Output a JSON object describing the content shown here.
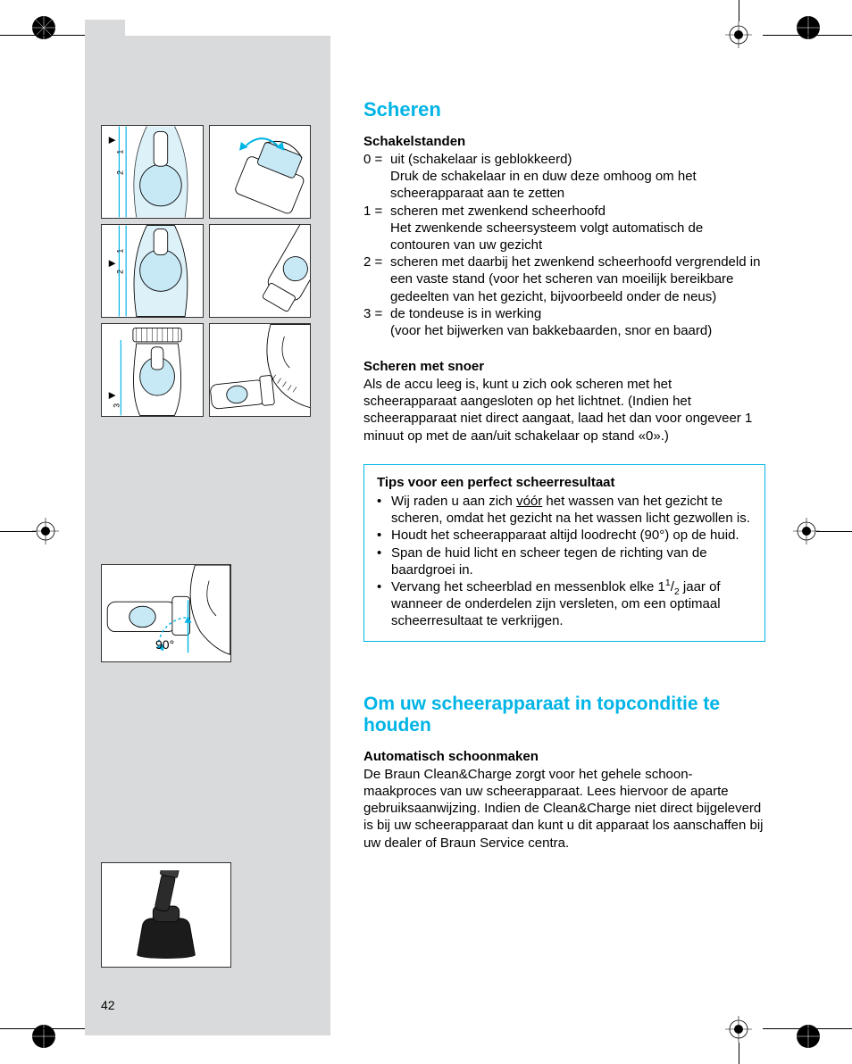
{
  "colors": {
    "accent": "#00b4e6",
    "grey_col": "#d9dadb",
    "ink": "#000000",
    "paper": "#ffffff",
    "lightblue_fill": "#c7e8f5"
  },
  "page_number": "42",
  "angle_label": "90°",
  "section1": {
    "title": "Scheren",
    "switch": {
      "heading": "Schakelstanden",
      "items": [
        {
          "k": "0 =",
          "v": "uit (schakelaar is geblokkeerd)\nDruk de schakelaar in en duw deze omhoog om het scheerapparaat aan te zetten"
        },
        {
          "k": "1 =",
          "v": "scheren met zwenkend scheerhoofd\nHet zwenkende scheersysteem volgt automatisch de contouren van uw gezicht"
        },
        {
          "k": "2 =",
          "v": "scheren met daarbij het zwenkend scheerhoofd vergrendeld in een vaste stand (voor het scheren van moeilijk bereikbare gedeelten van het gezicht, bijvoorbeeld onder de neus)"
        },
        {
          "k": "3 =",
          "v": "de tondeuse is in werking\n(voor het bijwerken van bakkebaarden, snor en baard)"
        }
      ]
    },
    "cord": {
      "heading": "Scheren met snoer",
      "body": "Als de accu leeg is, kunt u zich ook scheren met het scheerapparaat aangesloten op het lichtnet. (Indien het scheerapparaat niet direct aangaat, laad het dan voor ongeveer 1 minuut op met de aan/uit schakelaar op stand «0».)"
    },
    "tips": {
      "title": "Tips voor een perfect scheerresultaat",
      "items": [
        {
          "pre": "Wij raden u aan zich ",
          "u": "vóór",
          "post": " het wassen van het gezicht te scheren, omdat het gezicht na het wassen licht gezwollen is."
        },
        {
          "text": "Houdt het scheerapparaat altijd loodrecht (90°) op de huid."
        },
        {
          "text": "Span de huid licht en scheer tegen de richting van de baardgroei in."
        },
        {
          "text_frac": "Vervang het scheerblad en messenblok elke 1½ jaar of wanneer de onderdelen zijn versleten, om een optimaal scheerresultaat te verkrijgen.",
          "frac_html": "Vervang het scheerblad en messenblok elke 1<sup>1</sup>/<sub>2</sub> jaar of wanneer de onderdelen zijn versleten, om een optimaal scheerresultaat te verkrijgen."
        }
      ]
    }
  },
  "section2": {
    "title": "Om uw scheerapparaat in topconditie te houden",
    "auto": {
      "heading": "Automatisch schoonmaken",
      "body": "De Braun Clean&Charge zorgt voor het gehele schoon-maakproces van uw scheerapparaat. Lees hiervoor de aparte gebruiksaanwijzing. Indien de Clean&Charge niet direct bijgeleverd is bij uw scheerapparaat dan kunt u dit apparaat los aanschaffen bij uw dealer of Braun Service centra."
    }
  },
  "illus_grid_labels": [
    "1",
    "2",
    "1",
    "2",
    "3"
  ]
}
